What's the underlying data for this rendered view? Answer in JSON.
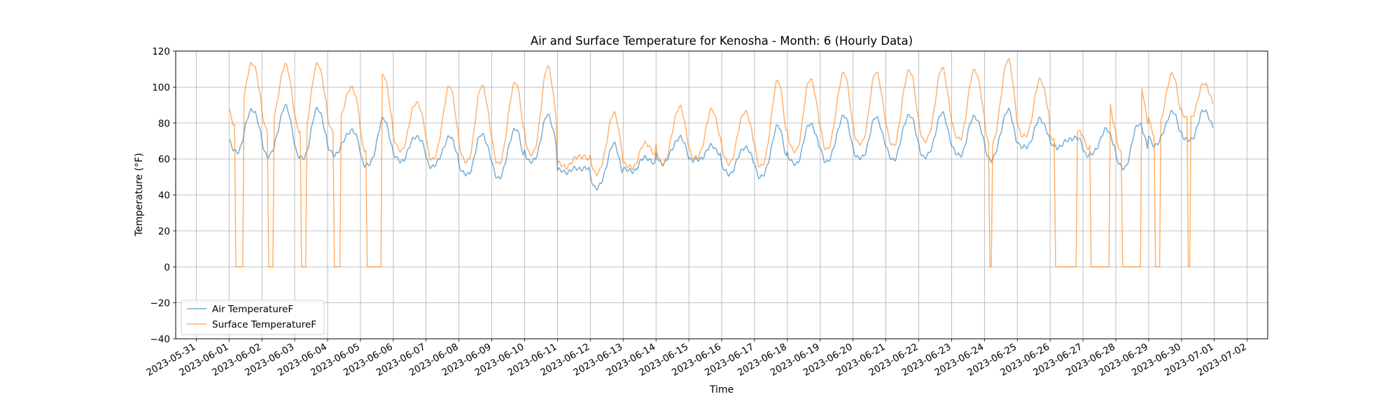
{
  "chart_data": {
    "type": "line",
    "title": "Air and Surface Temperature for Kenosha - Month: 6 (Hourly Data)",
    "xlabel": "Time",
    "ylabel": "Temperature (°F)",
    "xlim": [
      "2023-05-30T09:00",
      "2023-07-02T15:00"
    ],
    "ylim": [
      -40,
      120
    ],
    "yticks": [
      -40,
      -20,
      0,
      20,
      40,
      60,
      80,
      100,
      120
    ],
    "xticks": [
      "2023-05-31",
      "2023-06-01",
      "2023-06-02",
      "2023-06-03",
      "2023-06-04",
      "2023-06-05",
      "2023-06-06",
      "2023-06-07",
      "2023-06-08",
      "2023-06-09",
      "2023-06-10",
      "2023-06-11",
      "2023-06-12",
      "2023-06-13",
      "2023-06-14",
      "2023-06-15",
      "2023-06-16",
      "2023-06-17",
      "2023-06-18",
      "2023-06-19",
      "2023-06-20",
      "2023-06-21",
      "2023-06-22",
      "2023-06-23",
      "2023-06-24",
      "2023-06-25",
      "2023-06-26",
      "2023-06-27",
      "2023-06-28",
      "2023-06-29",
      "2023-06-30",
      "2023-07-01",
      "2023-07-02"
    ],
    "grid": true,
    "legend_position": "lower-left",
    "x": [
      "2023-06-01",
      "2023-06-02",
      "2023-06-03",
      "2023-06-04",
      "2023-06-05",
      "2023-06-06",
      "2023-06-07",
      "2023-06-08",
      "2023-06-09",
      "2023-06-10",
      "2023-06-11",
      "2023-06-12",
      "2023-06-13",
      "2023-06-14",
      "2023-06-15",
      "2023-06-16",
      "2023-06-17",
      "2023-06-18",
      "2023-06-19",
      "2023-06-20",
      "2023-06-21",
      "2023-06-22",
      "2023-06-23",
      "2023-06-24",
      "2023-06-25",
      "2023-06-26",
      "2023-06-27",
      "2023-06-28",
      "2023-06-29",
      "2023-06-30"
    ],
    "series": [
      {
        "name": "Air TemperatureF",
        "color": "#1f77b4",
        "daily_min": [
          64,
          62,
          60,
          63,
          56,
          59,
          56,
          51,
          50,
          58,
          53,
          44,
          53,
          58,
          59,
          52,
          50,
          57,
          59,
          60,
          60,
          61,
          62,
          60,
          66,
          67,
          62,
          55,
          68,
          70
        ],
        "daily_max": [
          88,
          89,
          88,
          76,
          82,
          73,
          72,
          74,
          77,
          84,
          55,
          68,
          61,
          72,
          67,
          67,
          78,
          80,
          84,
          83,
          85,
          85,
          84,
          87,
          82,
          72,
          76,
          80,
          86,
          87
        ]
      },
      {
        "name": "Surface TemperatureF",
        "color": "#ff7f0e",
        "daily_min": [
          78,
          76,
          74,
          75,
          64,
          65,
          60,
          58,
          58,
          62,
          56,
          52,
          55,
          58,
          60,
          58,
          56,
          64,
          66,
          68,
          68,
          70,
          71,
          68,
          72,
          70,
          66,
          62,
          74,
          82
        ],
        "daily_max": [
          114,
          112,
          113,
          100,
          106,
          92,
          100,
          101,
          103,
          111,
          62,
          85,
          69,
          89,
          87,
          87,
          103,
          105,
          108,
          108,
          110,
          110,
          110,
          115,
          104,
          77,
          95,
          103,
          107,
          102
        ],
        "zero_readings": [
          [
            "2023-06-01T05:00",
            "2023-06-01T10:00"
          ],
          [
            "2023-06-02T05:00",
            "2023-06-02T08:00"
          ],
          [
            "2023-06-03T05:00",
            "2023-06-03T08:00"
          ],
          [
            "2023-06-04T05:00",
            "2023-06-04T09:00"
          ],
          [
            "2023-06-05T05:00",
            "2023-06-05T15:00"
          ],
          [
            "2023-06-24T04:00",
            "2023-06-24T05:00"
          ],
          [
            "2023-06-26T04:00",
            "2023-06-26T19:00"
          ],
          [
            "2023-06-27T06:00",
            "2023-06-27T19:00"
          ],
          [
            "2023-06-28T05:00",
            "2023-06-28T18:00"
          ],
          [
            "2023-06-29T05:00",
            "2023-06-29T08:00"
          ],
          [
            "2023-06-30T05:00",
            "2023-06-30T06:00"
          ]
        ]
      }
    ]
  }
}
